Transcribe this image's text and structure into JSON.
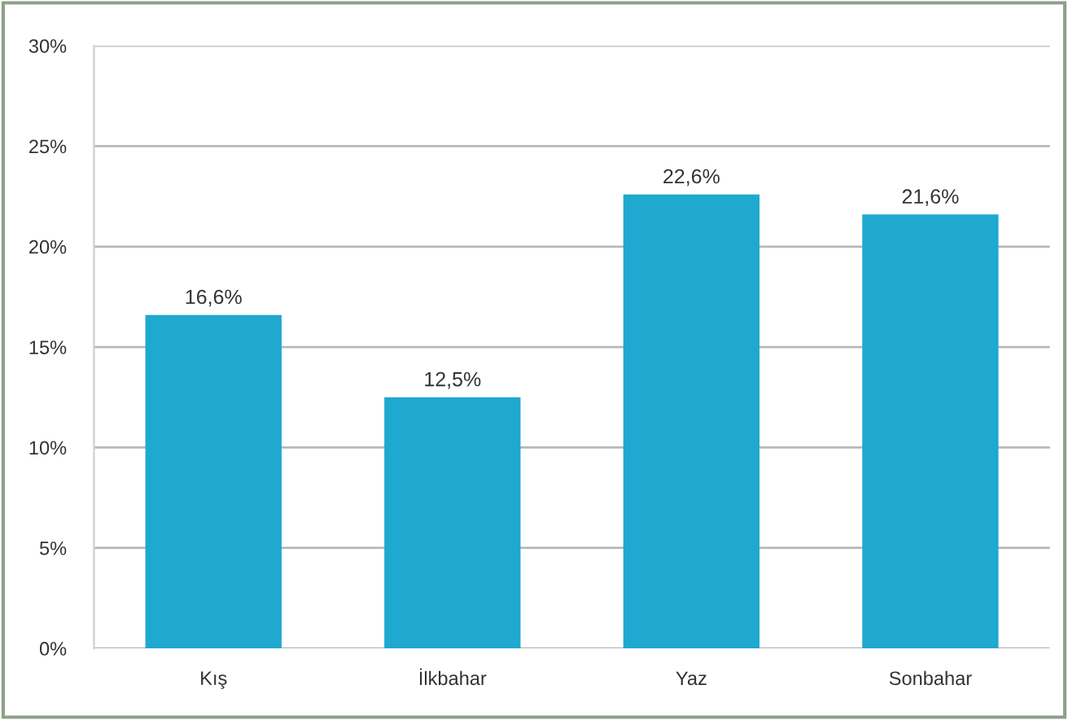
{
  "chart_data": {
    "type": "bar",
    "categories": [
      "Kış",
      "İlkbahar",
      "Yaz",
      "Sonbahar"
    ],
    "values": [
      16.6,
      12.5,
      22.6,
      21.6
    ],
    "value_labels": [
      "16,6%",
      "12,5%",
      "22,6%",
      "21,6%"
    ],
    "color": "#1fa8d0",
    "ylim": [
      0,
      30
    ],
    "yticks": [
      {
        "value": 0,
        "label": "0%"
      },
      {
        "value": 5,
        "label": "5%"
      },
      {
        "value": 10,
        "label": "10%"
      },
      {
        "value": 15,
        "label": "15%"
      },
      {
        "value": 20,
        "label": "20%"
      },
      {
        "value": 25,
        "label": "25%"
      },
      {
        "value": 30,
        "label": "30%"
      }
    ],
    "grid": "y"
  }
}
